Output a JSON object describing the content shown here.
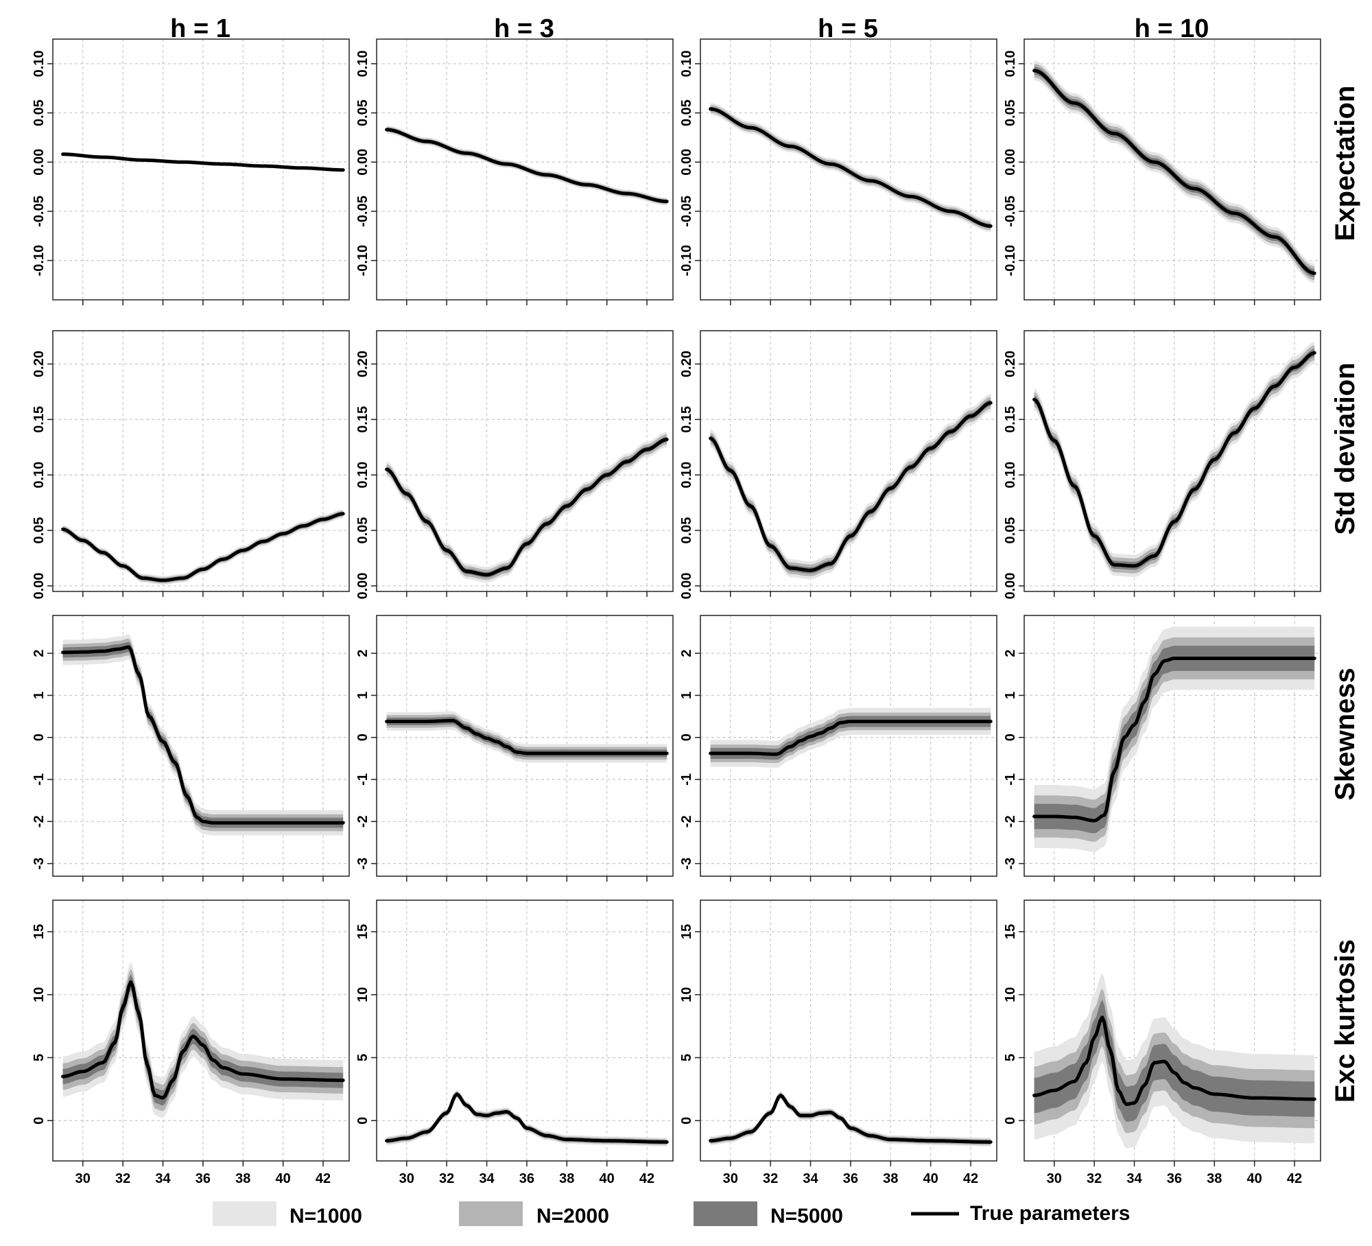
{
  "figure": {
    "column_titles": [
      "h = 1",
      "h = 3",
      "h = 5",
      "h = 10"
    ],
    "row_titles": [
      "Expectation",
      "Std deviation",
      "Skewness",
      "Exc kurtosis"
    ],
    "legend": [
      {
        "key": "n1000",
        "label": "N=1000",
        "color": "#e6e6e6"
      },
      {
        "key": "n2000",
        "label": "N=2000",
        "color": "#b4b4b4"
      },
      {
        "key": "n5000",
        "label": "N=5000",
        "color": "#7a7a7a"
      },
      {
        "key": "truth",
        "label": "True parameters",
        "color": "#000000"
      }
    ]
  },
  "chart_data": {
    "type": "line",
    "layout": "4x4 panel grid (rows = statistics, columns = horizons)",
    "xlabel": "",
    "xlim": [
      28.5,
      43.3
    ],
    "x_ticks": [
      30,
      32,
      34,
      36,
      38,
      40,
      42
    ],
    "x_range_plotted": [
      29,
      43
    ],
    "rows": [
      {
        "name": "Expectation",
        "ylim": [
          -0.14,
          0.125
        ],
        "y_ticks": [
          -0.1,
          -0.05,
          0.0,
          0.05,
          0.1
        ],
        "y_tick_labels": [
          "-0.10",
          "-0.05",
          "0.00",
          "0.05",
          "0.10"
        ]
      },
      {
        "name": "Std deviation",
        "ylim": [
          -0.005,
          0.23
        ],
        "y_ticks": [
          0.0,
          0.05,
          0.1,
          0.15,
          0.2
        ],
        "y_tick_labels": [
          "0.00",
          "0.05",
          "0.10",
          "0.15",
          "0.20"
        ]
      },
      {
        "name": "Skewness",
        "ylim": [
          -3.3,
          2.9
        ],
        "y_ticks": [
          -3,
          -2,
          -1,
          0,
          1,
          2
        ],
        "y_tick_labels": [
          "-3",
          "-2",
          "-1",
          "0",
          "1",
          "2"
        ]
      },
      {
        "name": "Exc kurtosis",
        "ylim": [
          -3.2,
          17.5
        ],
        "y_ticks": [
          0,
          5,
          10,
          15
        ],
        "y_tick_labels": [
          "0",
          "5",
          "10",
          "15"
        ]
      }
    ],
    "panels": [
      {
        "row": 0,
        "col": 0,
        "x": [
          29,
          31,
          33,
          35,
          37,
          39,
          41,
          43
        ],
        "y": [
          0.008,
          0.005,
          0.002,
          0.0,
          -0.002,
          -0.004,
          -0.006,
          -0.008
        ],
        "bands": {
          "n1000": 0.002,
          "n2000": 0.0013,
          "n5000": 0.0007
        }
      },
      {
        "row": 0,
        "col": 1,
        "x": [
          29,
          31,
          33,
          35,
          37,
          39,
          41,
          43
        ],
        "y": [
          0.033,
          0.021,
          0.009,
          -0.002,
          -0.013,
          -0.023,
          -0.032,
          -0.04
        ],
        "bands": {
          "n1000": 0.004,
          "n2000": 0.0027,
          "n5000": 0.0014
        }
      },
      {
        "row": 0,
        "col": 2,
        "x": [
          29,
          31,
          33,
          35,
          37,
          39,
          41,
          43
        ],
        "y": [
          0.054,
          0.035,
          0.016,
          -0.002,
          -0.019,
          -0.035,
          -0.05,
          -0.065
        ],
        "bands": {
          "n1000": 0.006,
          "n2000": 0.004,
          "n5000": 0.002
        }
      },
      {
        "row": 0,
        "col": 3,
        "x": [
          29,
          31,
          33,
          35,
          37,
          39,
          41,
          43
        ],
        "y": [
          0.093,
          0.06,
          0.029,
          0.0,
          -0.027,
          -0.052,
          -0.076,
          -0.113
        ],
        "bands": {
          "n1000": 0.01,
          "n2000": 0.007,
          "n5000": 0.004
        }
      },
      {
        "row": 1,
        "col": 0,
        "x": [
          29,
          30,
          31,
          32,
          33,
          34,
          35,
          36,
          37,
          38,
          39,
          40,
          41,
          42,
          43
        ],
        "y": [
          0.051,
          0.041,
          0.03,
          0.018,
          0.007,
          0.005,
          0.007,
          0.015,
          0.024,
          0.032,
          0.04,
          0.047,
          0.054,
          0.06,
          0.065
        ],
        "bands": {
          "n1000": 0.004,
          "n2000": 0.0027,
          "n5000": 0.0014
        }
      },
      {
        "row": 1,
        "col": 1,
        "x": [
          29,
          30,
          31,
          32,
          33,
          34,
          35,
          36,
          37,
          38,
          39,
          40,
          41,
          42,
          43
        ],
        "y": [
          0.105,
          0.083,
          0.058,
          0.032,
          0.013,
          0.01,
          0.016,
          0.038,
          0.056,
          0.072,
          0.087,
          0.1,
          0.112,
          0.123,
          0.132
        ],
        "bands": {
          "n1000": 0.007,
          "n2000": 0.0047,
          "n5000": 0.0025
        }
      },
      {
        "row": 1,
        "col": 2,
        "x": [
          29,
          30,
          31,
          32,
          33,
          34,
          35,
          36,
          37,
          38,
          39,
          40,
          41,
          42,
          43
        ],
        "y": [
          0.133,
          0.104,
          0.072,
          0.036,
          0.016,
          0.014,
          0.02,
          0.045,
          0.067,
          0.088,
          0.107,
          0.124,
          0.139,
          0.153,
          0.165
        ],
        "bands": {
          "n1000": 0.008,
          "n2000": 0.0053,
          "n5000": 0.0028
        }
      },
      {
        "row": 1,
        "col": 3,
        "x": [
          29,
          30,
          31,
          32,
          33,
          34,
          35,
          36,
          37,
          38,
          39,
          40,
          41,
          42,
          43
        ],
        "y": [
          0.168,
          0.131,
          0.09,
          0.045,
          0.019,
          0.018,
          0.027,
          0.058,
          0.087,
          0.114,
          0.138,
          0.16,
          0.18,
          0.197,
          0.21
        ],
        "bands": {
          "n1000": 0.01,
          "n2000": 0.0067,
          "n5000": 0.0035
        }
      },
      {
        "row": 2,
        "col": 0,
        "x": [
          29,
          30,
          31,
          31.8,
          32.3,
          32.8,
          33.3,
          34,
          34.6,
          35.2,
          35.7,
          36,
          36.5,
          37,
          38,
          40,
          43
        ],
        "y": [
          2.02,
          2.03,
          2.05,
          2.1,
          2.15,
          1.5,
          0.5,
          -0.1,
          -0.6,
          -1.4,
          -1.9,
          -2.0,
          -2.03,
          -2.03,
          -2.03,
          -2.03,
          -2.03
        ],
        "bands": {
          "n1000": 0.3,
          "n2000": 0.2,
          "n5000": 0.12
        }
      },
      {
        "row": 2,
        "col": 1,
        "x": [
          29,
          31,
          32.3,
          33,
          33.5,
          34,
          34.5,
          35,
          35.5,
          36,
          38,
          40,
          43
        ],
        "y": [
          0.38,
          0.38,
          0.4,
          0.22,
          0.08,
          -0.02,
          -0.1,
          -0.22,
          -0.35,
          -0.38,
          -0.38,
          -0.38,
          -0.38
        ],
        "bands": {
          "n1000": 0.22,
          "n2000": 0.15,
          "n5000": 0.09
        }
      },
      {
        "row": 2,
        "col": 2,
        "x": [
          29,
          31,
          32.3,
          33,
          33.5,
          34,
          34.5,
          35,
          35.5,
          36,
          38,
          40,
          43
        ],
        "y": [
          -0.38,
          -0.38,
          -0.4,
          -0.22,
          -0.08,
          0.02,
          0.1,
          0.22,
          0.35,
          0.38,
          0.38,
          0.38,
          0.38
        ],
        "bands": {
          "n1000": 0.32,
          "n2000": 0.21,
          "n5000": 0.13
        }
      },
      {
        "row": 2,
        "col": 3,
        "x": [
          29,
          30,
          31,
          32,
          32.5,
          33,
          33.5,
          34,
          34.5,
          35,
          35.5,
          36,
          37,
          38,
          40,
          43
        ],
        "y": [
          -1.88,
          -1.88,
          -1.9,
          -1.98,
          -1.85,
          -0.8,
          0.0,
          0.3,
          0.85,
          1.5,
          1.82,
          1.88,
          1.88,
          1.88,
          1.88,
          1.88
        ],
        "bands": {
          "n1000": 0.75,
          "n2000": 0.5,
          "n5000": 0.3
        }
      },
      {
        "row": 3,
        "col": 0,
        "x": [
          29,
          30,
          31,
          31.6,
          32,
          32.4,
          32.8,
          33.2,
          33.6,
          34,
          34.5,
          35,
          35.5,
          36,
          36.5,
          37,
          38,
          40,
          43
        ],
        "y": [
          3.5,
          3.9,
          4.6,
          6.2,
          9.0,
          11.0,
          8.5,
          4.5,
          2.0,
          1.8,
          3.2,
          5.5,
          6.7,
          6.0,
          4.8,
          4.2,
          3.7,
          3.3,
          3.2
        ],
        "bands": {
          "n1000": 1.6,
          "n2000": 1.05,
          "n5000": 0.6
        }
      },
      {
        "row": 3,
        "col": 1,
        "x": [
          29,
          30,
          31,
          32,
          32.5,
          33,
          33.5,
          34,
          34.5,
          35,
          35.5,
          36,
          37,
          38,
          40,
          43
        ],
        "y": [
          -1.6,
          -1.4,
          -0.9,
          0.6,
          2.1,
          1.2,
          0.5,
          0.4,
          0.6,
          0.7,
          0.2,
          -0.6,
          -1.2,
          -1.5,
          -1.6,
          -1.7
        ],
        "bands": {
          "n1000": 0.35,
          "n2000": 0.24,
          "n5000": 0.14
        }
      },
      {
        "row": 3,
        "col": 2,
        "x": [
          29,
          30,
          31,
          32,
          32.5,
          33,
          33.5,
          34,
          34.5,
          35,
          35.5,
          36,
          37,
          38,
          40,
          43
        ],
        "y": [
          -1.6,
          -1.4,
          -0.9,
          0.6,
          2.0,
          1.1,
          0.4,
          0.4,
          0.6,
          0.65,
          0.2,
          -0.6,
          -1.2,
          -1.5,
          -1.6,
          -1.7
        ],
        "bands": {
          "n1000": 0.35,
          "n2000": 0.24,
          "n5000": 0.14
        }
      },
      {
        "row": 3,
        "col": 3,
        "x": [
          29,
          30,
          31,
          31.6,
          32,
          32.4,
          32.8,
          33.2,
          33.6,
          34,
          34.5,
          35,
          35.5,
          36,
          36.5,
          37,
          38,
          40,
          43
        ],
        "y": [
          2.0,
          2.4,
          3.1,
          4.6,
          6.6,
          8.2,
          5.6,
          2.4,
          1.3,
          1.4,
          2.8,
          4.6,
          4.7,
          3.8,
          3.0,
          2.6,
          2.1,
          1.8,
          1.7
        ],
        "bands": {
          "n1000": 3.5,
          "n2000": 2.3,
          "n5000": 1.4
        }
      }
    ]
  }
}
